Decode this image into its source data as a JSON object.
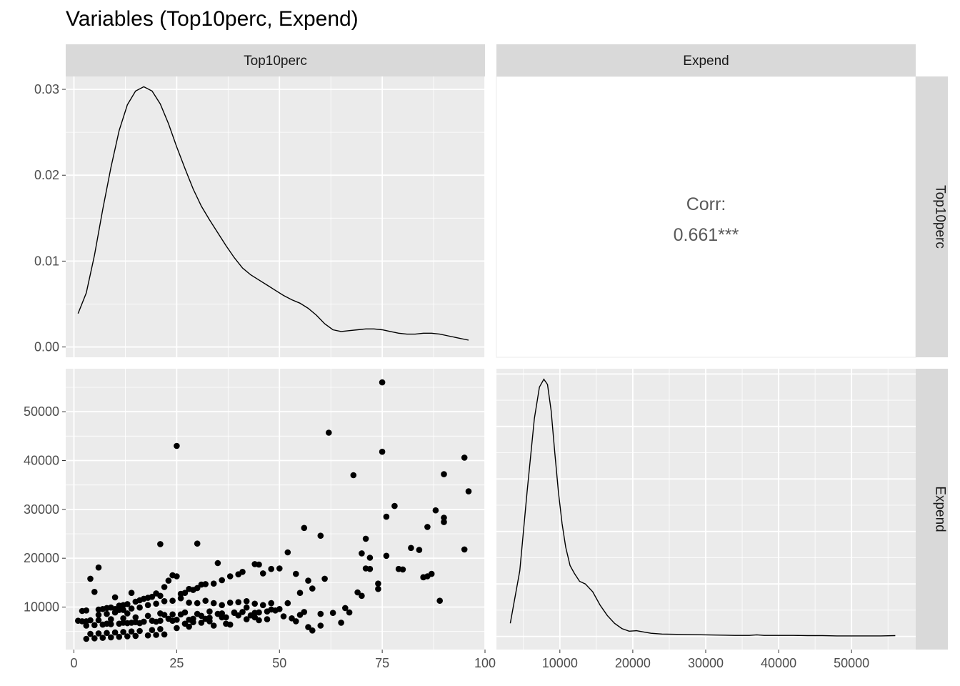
{
  "title": "Variables (Top10perc, Expend)",
  "variables": [
    "Top10perc",
    "Expend"
  ],
  "colors": {
    "panel_bg": "#EBEBEB",
    "strip_bg": "#D9D9D9",
    "grid": "#FFFFFF",
    "marks": "#000000",
    "corr_text": "#595959"
  },
  "chart_data": [
    {
      "type": "line",
      "panel": "Top10perc diagonal density",
      "x": [
        1,
        3,
        5,
        7,
        9,
        11,
        13,
        15,
        17,
        19,
        21,
        23,
        25,
        27,
        29,
        31,
        33,
        35,
        37,
        39,
        41,
        43,
        45,
        47,
        49,
        51,
        53,
        55,
        57,
        59,
        61,
        63,
        65,
        67,
        69,
        71,
        73,
        75,
        77,
        79,
        81,
        83,
        85,
        87,
        89,
        91,
        93,
        96
      ],
      "y": [
        0.0039,
        0.0063,
        0.0107,
        0.016,
        0.0209,
        0.0252,
        0.0282,
        0.0298,
        0.0303,
        0.0298,
        0.0283,
        0.026,
        0.0233,
        0.0208,
        0.0184,
        0.0164,
        0.0148,
        0.0133,
        0.0118,
        0.0104,
        0.0092,
        0.0084,
        0.0078,
        0.0072,
        0.0066,
        0.006,
        0.0055,
        0.0051,
        0.0045,
        0.0037,
        0.0027,
        0.002,
        0.0018,
        0.0019,
        0.002,
        0.0021,
        0.0021,
        0.002,
        0.0018,
        0.0016,
        0.0015,
        0.0015,
        0.0016,
        0.0016,
        0.0015,
        0.0013,
        0.0011,
        0.0008
      ],
      "xlim": [
        -2,
        100
      ],
      "ylim": [
        -0.0012,
        0.0315
      ],
      "yticks": [
        0,
        0.01,
        0.02,
        0.03
      ],
      "ytick_labels": [
        "0.00",
        "0.01",
        "0.02",
        "0.03"
      ]
    },
    {
      "type": "text",
      "panel": "Top10perc vs Expend correlation",
      "label": "Corr:",
      "value": "0.661***"
    },
    {
      "type": "scatter",
      "panel": "Top10perc vs Expend scatter",
      "x": [
        75,
        25,
        62,
        75,
        95,
        68,
        90,
        96,
        78,
        90,
        88,
        76,
        90,
        56,
        60,
        71,
        21,
        30,
        76,
        95,
        82,
        84,
        86,
        70,
        72,
        6,
        85,
        86,
        72,
        79,
        74,
        71,
        52,
        89,
        70,
        61,
        57,
        54,
        50,
        44,
        45,
        48,
        46,
        41,
        40,
        38,
        36,
        35,
        34,
        32,
        31,
        30,
        29,
        28,
        27,
        26,
        25,
        24,
        23,
        22,
        21,
        20,
        19,
        18,
        17,
        16,
        15,
        14,
        13,
        12,
        11,
        10,
        9,
        8,
        7,
        6,
        5,
        4,
        3,
        2,
        1,
        26,
        24,
        22,
        20,
        18,
        16,
        14,
        12,
        10,
        8,
        6,
        28,
        30,
        32,
        34,
        36,
        38,
        40,
        42,
        44,
        46,
        48,
        50,
        52,
        55,
        58,
        48,
        45,
        42,
        39,
        36,
        33,
        30,
        27,
        24,
        21,
        18,
        15,
        12,
        9,
        6,
        3,
        23,
        19,
        17,
        15,
        13,
        11,
        9,
        7,
        5,
        3,
        2,
        4,
        8,
        12,
        16,
        20,
        24,
        28,
        32,
        36,
        40,
        44,
        47,
        43,
        37,
        33,
        29,
        25,
        21,
        17,
        14,
        13,
        11,
        10,
        22,
        26,
        31,
        35,
        39,
        41,
        49,
        53,
        56,
        67,
        65,
        60,
        57,
        54,
        47,
        44,
        38,
        34,
        28,
        25,
        21,
        19,
        16,
        14,
        12,
        10,
        8,
        6,
        4,
        22,
        20,
        18,
        15,
        13,
        11,
        9,
        7,
        5,
        3,
        27,
        29,
        31,
        33,
        37,
        42,
        45,
        51,
        55,
        58,
        63,
        66,
        69,
        74,
        80,
        85,
        87,
        60
      ],
      "y": [
        56000,
        43000,
        45700,
        41800,
        40600,
        37000,
        37200,
        33700,
        30700,
        28300,
        29800,
        28500,
        27400,
        26200,
        24600,
        24000,
        22900,
        23000,
        20500,
        21800,
        22100,
        21700,
        26400,
        21000,
        20100,
        18100,
        16100,
        16300,
        17800,
        17800,
        13700,
        17900,
        21200,
        11300,
        12300,
        15800,
        15400,
        16800,
        17900,
        18800,
        18700,
        17800,
        16900,
        17200,
        16700,
        16300,
        15500,
        19000,
        14800,
        14700,
        14600,
        13900,
        13500,
        13700,
        12900,
        12700,
        16300,
        16500,
        15400,
        14100,
        12300,
        12800,
        12100,
        11900,
        11700,
        11400,
        11100,
        12900,
        10600,
        10400,
        10300,
        12000,
        9900,
        9800,
        9600,
        9500,
        13100,
        15800,
        9300,
        9200,
        7200,
        11800,
        11300,
        11200,
        10700,
        10400,
        9900,
        9700,
        9400,
        8900,
        8600,
        8400,
        10900,
        10800,
        11300,
        10800,
        10400,
        10900,
        11000,
        11200,
        10700,
        10400,
        10800,
        9600,
        10800,
        12900,
        13800,
        9500,
        8900,
        9900,
        8800,
        8700,
        9100,
        8600,
        8900,
        8500,
        8700,
        8200,
        7900,
        7700,
        7500,
        7300,
        7100,
        7600,
        7200,
        7000,
        6900,
        6700,
        6600,
        6500,
        6400,
        6300,
        6200,
        7100,
        7300,
        6600,
        6800,
        6700,
        7000,
        7200,
        7400,
        7600,
        7900,
        8300,
        8800,
        9100,
        8300,
        7900,
        7800,
        7600,
        7400,
        7200,
        7000,
        6800,
        8700,
        9400,
        9600,
        8400,
        8500,
        8200,
        8600,
        8900,
        9000,
        9300,
        7700,
        9000,
        8900,
        6800,
        6200,
        5900,
        7100,
        7500,
        7900,
        6400,
        6200,
        6000,
        5700,
        5500,
        5300,
        5100,
        5000,
        4900,
        4800,
        4700,
        4600,
        4500,
        4400,
        4300,
        4200,
        4100,
        4000,
        3900,
        3800,
        3700,
        3600,
        3500,
        6600,
        6900,
        6800,
        7100,
        6600,
        7500,
        7300,
        8100,
        8400,
        5200,
        8800,
        9800,
        13000,
        14800,
        17700,
        16100,
        16800,
        8600
      ],
      "xlim": [
        -2,
        100
      ],
      "ylim": [
        1300,
        58800
      ],
      "xticks": [
        0,
        25,
        50,
        75,
        100
      ],
      "yticks": [
        10000,
        20000,
        30000,
        40000,
        50000
      ],
      "ytick_labels": [
        "10000",
        "20000",
        "30000",
        "40000",
        "50000"
      ]
    },
    {
      "type": "line",
      "panel": "Expend diagonal density",
      "x": [
        3200,
        4500,
        5500,
        6500,
        7200,
        7800,
        8300,
        8800,
        9300,
        9800,
        10300,
        10800,
        11400,
        12000,
        12700,
        13500,
        14500,
        15500,
        16500,
        17500,
        18500,
        19500,
        20500,
        21500,
        22500,
        24000,
        26000,
        28000,
        30000,
        32000,
        34000,
        36000,
        37000,
        38000,
        40000,
        42000,
        44000,
        46000,
        48000,
        50000,
        52000,
        54000,
        56000
      ],
      "y": [
        0.05,
        0.25,
        0.55,
        0.83,
        0.95,
        0.98,
        0.96,
        0.86,
        0.7,
        0.55,
        0.43,
        0.34,
        0.27,
        0.24,
        0.21,
        0.2,
        0.17,
        0.12,
        0.08,
        0.05,
        0.03,
        0.02,
        0.022,
        0.017,
        0.012,
        0.009,
        0.008,
        0.007,
        0.006,
        0.005,
        0.004,
        0.004,
        0.006,
        0.004,
        0.004,
        0.004,
        0.003,
        0.003,
        0.002,
        0.002,
        0.002,
        0.002,
        0.003
      ],
      "xlim": [
        1300,
        58800
      ],
      "ylim": [
        -0.05,
        1.02
      ],
      "xticks": [
        10000,
        20000,
        30000,
        40000,
        50000
      ],
      "xtick_labels": [
        "10000",
        "20000",
        "30000",
        "40000",
        "50000"
      ]
    }
  ],
  "axes": {
    "x_left_tick_labels": [
      "0",
      "25",
      "50",
      "75",
      "100"
    ],
    "x_right_tick_labels": [
      "10000",
      "20000",
      "30000",
      "40000",
      "50000"
    ]
  }
}
